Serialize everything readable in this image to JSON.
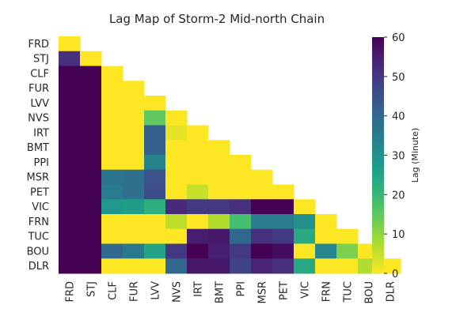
{
  "chart_data": {
    "type": "heatmap",
    "title": "Lag Map of Storm-2 Mid-north Chain",
    "labels": [
      "FRD",
      "STJ",
      "CLF",
      "FUR",
      "LVV",
      "NVS",
      "IRT",
      "BMT",
      "PPI",
      "MSR",
      "PET",
      "VIC",
      "FRN",
      "TUC",
      "BOU",
      "DLR"
    ],
    "matrix": [
      [
        0
      ],
      [
        52,
        0
      ],
      [
        60,
        60,
        0
      ],
      [
        60,
        60,
        0,
        0
      ],
      [
        60,
        60,
        0,
        0,
        0
      ],
      [
        60,
        60,
        0,
        0,
        15,
        0
      ],
      [
        60,
        60,
        0,
        0,
        42,
        2,
        0
      ],
      [
        60,
        60,
        0,
        0,
        42,
        0,
        0,
        0
      ],
      [
        60,
        60,
        0,
        0,
        33,
        0,
        0,
        0,
        0
      ],
      [
        60,
        60,
        37,
        38,
        45,
        0,
        0,
        0,
        0,
        0
      ],
      [
        60,
        60,
        35,
        38,
        46,
        0,
        5,
        0,
        0,
        0,
        0
      ],
      [
        60,
        60,
        28,
        27,
        22,
        53,
        50,
        50,
        52,
        60,
        60,
        0
      ],
      [
        60,
        60,
        0,
        0,
        0,
        6,
        0,
        7,
        18,
        35,
        35,
        30,
        0
      ],
      [
        60,
        60,
        0,
        0,
        0,
        0,
        55,
        56,
        40,
        52,
        50,
        24,
        0,
        0
      ],
      [
        60,
        60,
        40,
        36,
        25,
        50,
        60,
        55,
        50,
        60,
        58,
        0,
        32,
        12,
        0
      ],
      [
        60,
        60,
        0,
        0,
        0,
        40,
        56,
        56,
        48,
        54,
        52,
        24,
        0,
        0,
        7,
        0
      ]
    ],
    "colorbar": {
      "label": "Lag (Minute)",
      "min": 0,
      "max": 60,
      "ticks": [
        0,
        10,
        20,
        30,
        40,
        50,
        60
      ]
    },
    "colormap": "viridis_r"
  }
}
